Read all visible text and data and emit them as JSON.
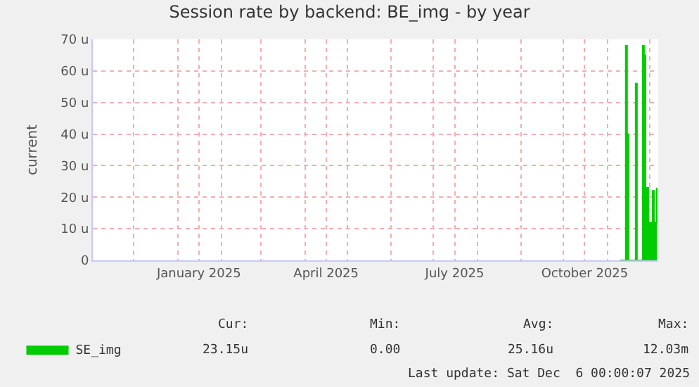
{
  "chart_data": {
    "type": "area",
    "title": "Session rate by backend: BE_img - by year",
    "ylabel": "current",
    "x": [
      "2025-11-10",
      "2025-11-13",
      "2025-11-14",
      "2025-11-15",
      "2025-11-16",
      "2025-11-20",
      "2025-11-21",
      "2025-11-22",
      "2025-11-25",
      "2025-11-26",
      "2025-11-27",
      "2025-11-28",
      "2025-11-29",
      "2025-11-30",
      "2025-12-01",
      "2025-12-02",
      "2025-12-03",
      "2025-12-04",
      "2025-12-05",
      "2025-12-06"
    ],
    "series": [
      {
        "name": "SE_img",
        "color": "#00cc00",
        "values": [
          0,
          0,
          68,
          40,
          0,
          0,
          56,
          0,
          0,
          68,
          65,
          23,
          23,
          0,
          12,
          12,
          22,
          12,
          12,
          23
        ]
      }
    ],
    "xlim": [
      "2024-11-02",
      "2025-12-07"
    ],
    "xticks": [
      {
        "value": "2024-12-01",
        "label": null
      },
      {
        "value": "2025-01-01",
        "label": null
      },
      {
        "value": "2025-01-16",
        "label": "January 2025"
      },
      {
        "value": "2025-02-01",
        "label": null
      },
      {
        "value": "2025-03-01",
        "label": null
      },
      {
        "value": "2025-04-01",
        "label": null
      },
      {
        "value": "2025-04-16",
        "label": "April 2025"
      },
      {
        "value": "2025-05-01",
        "label": null
      },
      {
        "value": "2025-06-01",
        "label": null
      },
      {
        "value": "2025-07-01",
        "label": null
      },
      {
        "value": "2025-07-16",
        "label": "July 2025"
      },
      {
        "value": "2025-08-01",
        "label": null
      },
      {
        "value": "2025-09-01",
        "label": null
      },
      {
        "value": "2025-10-01",
        "label": null
      },
      {
        "value": "2025-10-16",
        "label": "October 2025"
      },
      {
        "value": "2025-11-01",
        "label": null
      },
      {
        "value": "2025-12-01",
        "label": null
      }
    ],
    "ylim": [
      0,
      70
    ],
    "yticks": [
      0,
      {
        "value": 10,
        "label": "10 u"
      },
      {
        "value": 20,
        "label": "20 u"
      },
      {
        "value": 30,
        "label": "30 u"
      },
      {
        "value": 40,
        "label": "40 u"
      },
      {
        "value": 50,
        "label": "50 u"
      },
      {
        "value": 60,
        "label": "60 u"
      },
      {
        "value": 70,
        "label": "70 u"
      }
    ],
    "grid": true,
    "legend": "bottom left",
    "annotations": [
      "Cur:",
      "Min:",
      "Avg:",
      "Max:",
      "23.15u",
      "0.00",
      "25.16u",
      "12.03m",
      "Last update: Sat Dec  6 00:00:07 2025"
    ]
  }
}
